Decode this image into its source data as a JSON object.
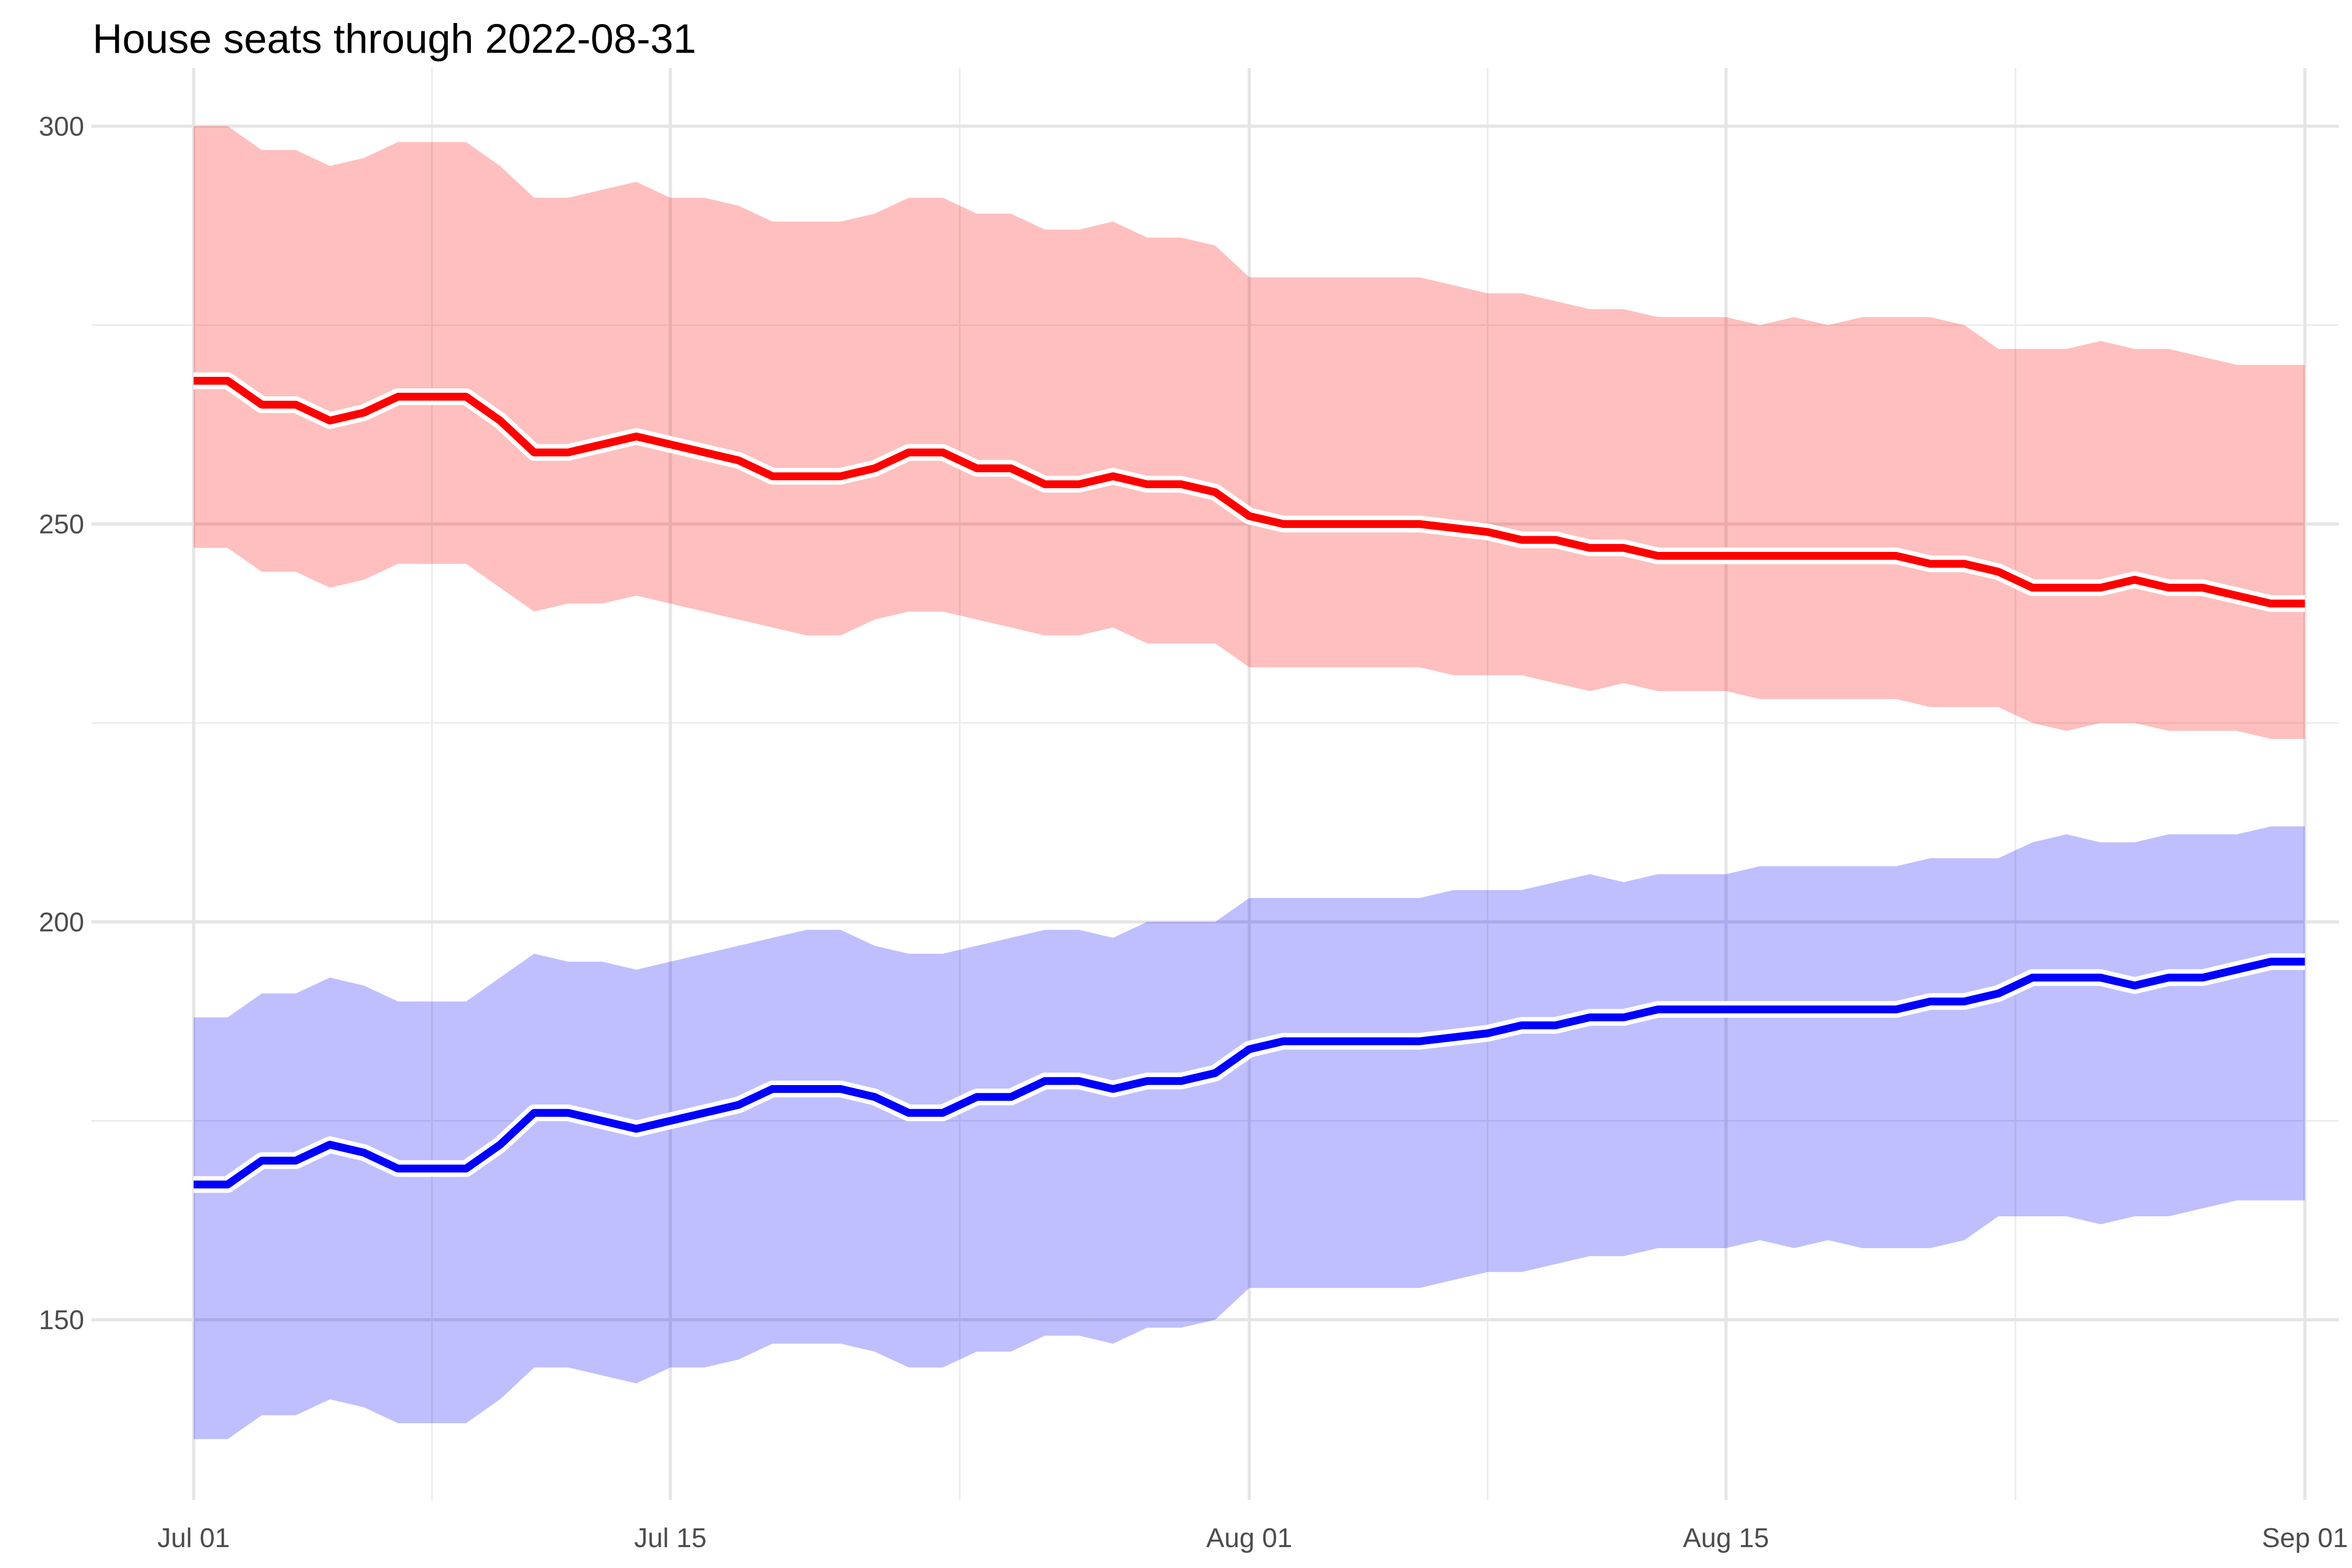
{
  "chart_data": {
    "type": "area",
    "title": "House seats through 2022-08-31",
    "xlabel": "",
    "ylabel": "",
    "x_start": "2022-07-01",
    "xlim": [
      "2022-06-28",
      "2022-09-02"
    ],
    "ylim": [
      128,
      306
    ],
    "x_ticks": [
      {
        "date": "2022-07-01",
        "label": "Jul 01"
      },
      {
        "date": "2022-07-15",
        "label": "Jul 15"
      },
      {
        "date": "2022-08-01",
        "label": "Aug 01"
      },
      {
        "date": "2022-08-15",
        "label": "Aug 15"
      },
      {
        "date": "2022-09-01",
        "label": "Sep 01"
      }
    ],
    "y_ticks": [
      150,
      200,
      250,
      300
    ],
    "grid": true,
    "legend": "none",
    "series": [
      {
        "color": "#ff0000",
        "band_color": "#ff0000",
        "median": [
          268,
          268,
          265,
          265,
          263,
          264,
          266,
          266,
          266,
          263,
          259,
          259,
          260,
          261,
          260,
          259,
          258,
          256,
          256,
          256,
          257,
          259,
          259,
          257,
          257,
          255,
          255,
          256,
          255,
          255,
          254,
          251,
          250,
          250,
          250,
          250,
          250,
          249.5,
          249,
          248,
          248,
          247,
          247,
          246,
          246,
          246,
          246,
          246,
          246,
          246,
          246,
          245,
          245,
          244,
          242,
          242,
          242,
          243,
          242,
          242,
          241,
          240,
          240
        ],
        "upper": [
          300,
          300,
          297,
          297,
          295,
          296,
          298,
          298,
          298,
          295,
          291,
          291,
          292,
          293,
          291,
          291,
          290,
          288,
          288,
          288,
          289,
          291,
          291,
          289,
          289,
          287,
          287,
          288,
          286,
          286,
          285,
          281,
          281,
          281,
          281,
          281,
          281,
          280,
          279,
          279,
          278,
          277,
          277,
          276,
          276,
          276,
          275,
          276,
          275,
          276,
          276,
          276,
          275,
          272,
          272,
          272,
          273,
          272,
          272,
          271,
          270,
          270,
          270
        ],
        "lower": [
          247,
          247,
          244,
          244,
          242,
          243,
          245,
          245,
          245,
          242,
          239,
          240,
          240,
          241,
          240,
          239,
          238,
          237,
          236,
          236,
          238,
          239,
          239,
          238,
          237,
          236,
          236,
          237,
          235,
          235,
          235,
          232,
          232,
          232,
          232,
          232,
          232,
          231,
          231,
          231,
          230,
          229,
          230,
          229,
          229,
          229,
          228,
          228,
          228,
          228,
          228,
          227,
          227,
          227,
          225,
          224,
          225,
          225,
          224,
          224,
          224,
          223,
          223
        ]
      },
      {
        "color": "#0000ff",
        "band_color": "#0000ff",
        "median": [
          167,
          167,
          170,
          170,
          172,
          171,
          169,
          169,
          169,
          172,
          176,
          176,
          175,
          174,
          175,
          176,
          177,
          179,
          179,
          179,
          178,
          176,
          176,
          178,
          178,
          180,
          180,
          179,
          180,
          180,
          181,
          184,
          185,
          185,
          185,
          185,
          185,
          185.5,
          186,
          187,
          187,
          188,
          188,
          189,
          189,
          189,
          189,
          189,
          189,
          189,
          189,
          190,
          190,
          191,
          193,
          193,
          193,
          192,
          193,
          193,
          194,
          195,
          195
        ],
        "upper": [
          188,
          188,
          191,
          191,
          193,
          192,
          190,
          190,
          190,
          193,
          196,
          195,
          195,
          194,
          195,
          196,
          197,
          198,
          199,
          199,
          197,
          196,
          196,
          197,
          198,
          199,
          199,
          198,
          200,
          200,
          200,
          203,
          203,
          203,
          203,
          203,
          203,
          204,
          204,
          204,
          205,
          206,
          205,
          206,
          206,
          206,
          207,
          207,
          207,
          207,
          207,
          208,
          208,
          208,
          210,
          211,
          210,
          210,
          211,
          211,
          211,
          212,
          212
        ],
        "lower": [
          135,
          135,
          138,
          138,
          140,
          139,
          137,
          137,
          137,
          140,
          144,
          144,
          143,
          142,
          144,
          144,
          145,
          147,
          147,
          147,
          146,
          144,
          144,
          146,
          146,
          148,
          148,
          147,
          149,
          149,
          150,
          154,
          154,
          154,
          154,
          154,
          154,
          155,
          156,
          156,
          157,
          158,
          158,
          159,
          159,
          159,
          160,
          159,
          160,
          159,
          159,
          159,
          160,
          163,
          163,
          163,
          162,
          163,
          163,
          164,
          165,
          165,
          165
        ]
      }
    ]
  }
}
